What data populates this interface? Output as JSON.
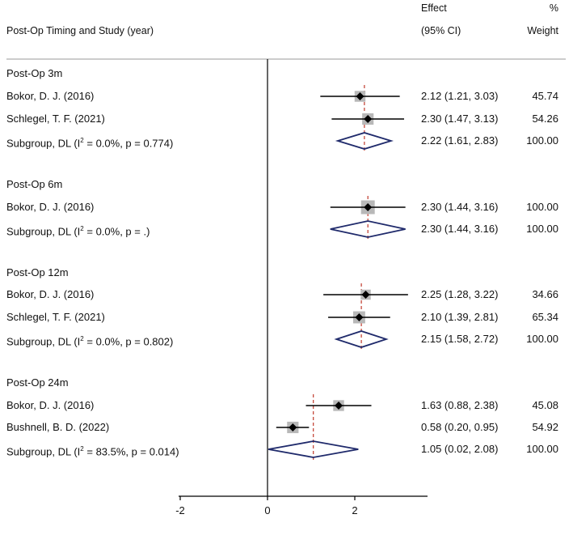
{
  "chart_data": {
    "type": "forest",
    "header": {
      "study_col": "Post-Op Timing and Study (year)",
      "effect_line1": "Effect",
      "effect_line2": "(95% CI)",
      "weight_line1": "%",
      "weight_line2": "Weight"
    },
    "x_ticks": [
      "-2",
      "0",
      "2"
    ],
    "x_tick_values": [
      -2,
      0,
      2
    ],
    "null_line": 0,
    "colors": {
      "diamond": "#1f2a6b",
      "box": "#b8b8b8",
      "point": "#000000",
      "overall_line": "#c0392b",
      "axis": "#000000"
    },
    "groups": [
      {
        "title": "Post-Op 3m",
        "studies": [
          {
            "label": "Bokor, D. J. (2016)",
            "effect": 2.12,
            "lower": 1.21,
            "upper": 3.03,
            "ci_text": "2.12 (1.21, 3.03)",
            "weight": "45.74"
          },
          {
            "label": "Schlegel, T. F. (2021)",
            "effect": 2.3,
            "lower": 1.47,
            "upper": 3.13,
            "ci_text": "2.30 (1.47, 3.13)",
            "weight": "54.26"
          }
        ],
        "subgroup": {
          "label_prefix": "Subgroup, DL (I",
          "label_sup": "2",
          "label_suffix": " = 0.0%, p = 0.774)",
          "effect": 2.22,
          "lower": 1.61,
          "upper": 2.83,
          "ci_text": "2.22 (1.61, 2.83)",
          "weight": "100.00"
        }
      },
      {
        "title": "Post-Op 6m",
        "studies": [
          {
            "label": "Bokor, D. J. (2016)",
            "effect": 2.3,
            "lower": 1.44,
            "upper": 3.16,
            "ci_text": "2.30 (1.44, 3.16)",
            "weight": "100.00"
          }
        ],
        "subgroup": {
          "label_prefix": "Subgroup, DL (I",
          "label_sup": "2",
          "label_suffix": " = 0.0%, p = .)",
          "effect": 2.3,
          "lower": 1.44,
          "upper": 3.16,
          "ci_text": "2.30 (1.44, 3.16)",
          "weight": "100.00"
        }
      },
      {
        "title": "Post-Op 12m",
        "studies": [
          {
            "label": "Bokor, D. J. (2016)",
            "effect": 2.25,
            "lower": 1.28,
            "upper": 3.22,
            "ci_text": "2.25 (1.28, 3.22)",
            "weight": "34.66"
          },
          {
            "label": "Schlegel, T. F. (2021)",
            "effect": 2.1,
            "lower": 1.39,
            "upper": 2.81,
            "ci_text": "2.10 (1.39, 2.81)",
            "weight": "65.34"
          }
        ],
        "subgroup": {
          "label_prefix": "Subgroup, DL (I",
          "label_sup": "2",
          "label_suffix": " = 0.0%, p = 0.802)",
          "effect": 2.15,
          "lower": 1.58,
          "upper": 2.72,
          "ci_text": "2.15 (1.58, 2.72)",
          "weight": "100.00"
        }
      },
      {
        "title": "Post-Op 24m",
        "studies": [
          {
            "label": "Bokor, D. J. (2016)",
            "effect": 1.63,
            "lower": 0.88,
            "upper": 2.38,
            "ci_text": "1.63 (0.88, 2.38)",
            "weight": "45.08"
          },
          {
            "label": "Bushnell, B. D. (2022)",
            "effect": 0.58,
            "lower": 0.2,
            "upper": 0.95,
            "ci_text": "0.58 (0.20, 0.95)",
            "weight": "54.92"
          }
        ],
        "subgroup": {
          "label_prefix": "Subgroup, DL (I",
          "label_sup": "2",
          "label_suffix": " = 83.5%, p = 0.014)",
          "effect": 1.05,
          "lower": 0.02,
          "upper": 2.08,
          "ci_text": "1.05 (0.02, 2.08)",
          "weight": "100.00"
        }
      }
    ]
  }
}
